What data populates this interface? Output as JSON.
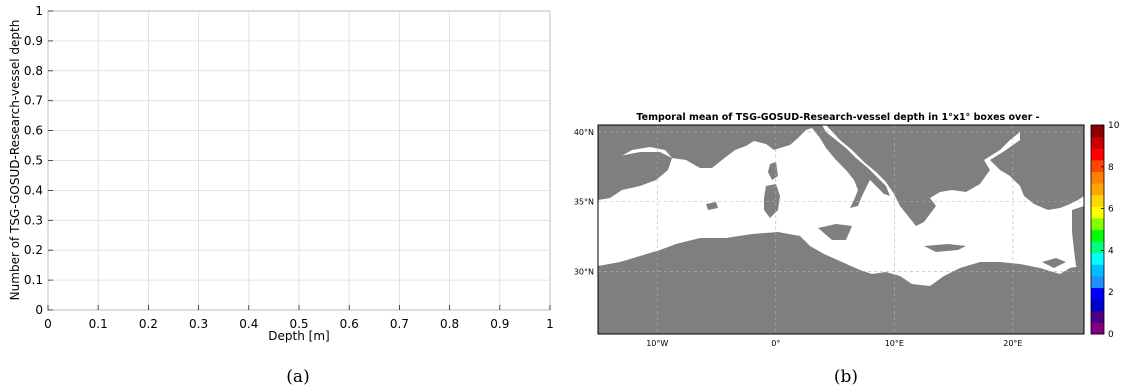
{
  "chart_data": [
    {
      "panel": "(a)",
      "type": "bar",
      "x": [],
      "values": [],
      "xlabel": "Depth [m]",
      "ylabel": "Number of TSG-GOSUD-Research-vessel depth",
      "xlim": [
        0,
        1
      ],
      "ylim": [
        0,
        1
      ],
      "xticks": [
        "0",
        "0.1",
        "0.2",
        "0.3",
        "0.4",
        "0.5",
        "0.6",
        "0.7",
        "0.8",
        "0.9",
        "1"
      ],
      "yticks": [
        "0",
        "0.1",
        "0.2",
        "0.3",
        "0.4",
        "0.5",
        "0.6",
        "0.7",
        "0.8",
        "0.9",
        "1"
      ],
      "grid": true
    },
    {
      "panel": "(b)",
      "type": "heatmap",
      "title": "Temporal mean of TSG-GOSUD-Research-vessel depth in 1°x1° boxes over -",
      "values": [],
      "lon_range": [
        -15,
        26
      ],
      "lat_range": [
        25.5,
        40.5
      ],
      "xticks": [
        -10,
        0,
        10,
        20
      ],
      "yticks": [
        30,
        35,
        40
      ],
      "xtick_labels": [
        "10°W",
        "0°",
        "10°E",
        "20°E"
      ],
      "ytick_labels": [
        "30°N",
        "35°N",
        "40°N"
      ],
      "colorbar_range": [
        0,
        10
      ],
      "colorbar_ticks": [
        "0",
        "2",
        "4",
        "6",
        "8",
        "10"
      ],
      "colormap": [
        "#800080",
        "#4b0082",
        "#0000cd",
        "#0000ff",
        "#1e90ff",
        "#00bfff",
        "#00ffff",
        "#00ff7f",
        "#00ff00",
        "#7fff00",
        "#ffff00",
        "#ffd700",
        "#ffa500",
        "#ff7f00",
        "#ff4500",
        "#ff0000",
        "#cc0000",
        "#8b0000"
      ],
      "land_color": "#7f7f7f",
      "sea_color": "#ffffff",
      "grid": true
    }
  ],
  "captions": {
    "a": "(a)",
    "b": "(b)"
  }
}
